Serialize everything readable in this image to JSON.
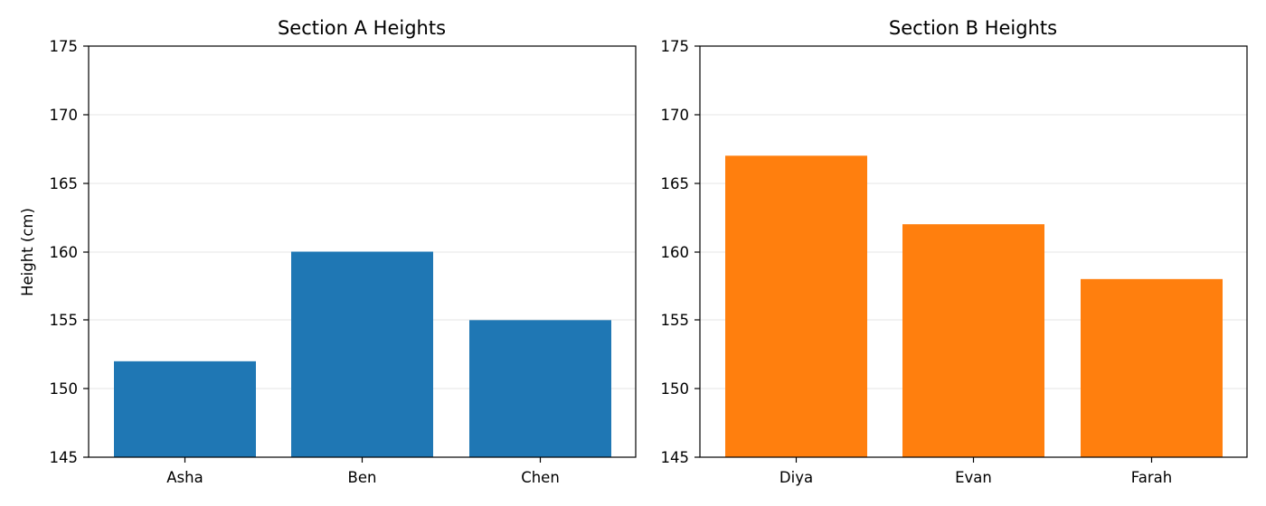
{
  "chart_data": [
    {
      "type": "bar",
      "title": "Section A Heights",
      "xlabel": "",
      "ylabel": "Height (cm)",
      "categories": [
        "Asha",
        "Ben",
        "Chen"
      ],
      "values": [
        152,
        160,
        155
      ],
      "ylim": [
        145,
        175
      ],
      "yticks": [
        "145",
        "150",
        "155",
        "160",
        "165",
        "170",
        "175"
      ],
      "grid": "y-axis",
      "color": "#1f77b4"
    },
    {
      "type": "bar",
      "title": "Section B Heights",
      "xlabel": "",
      "ylabel": "",
      "categories": [
        "Diya",
        "Evan",
        "Farah"
      ],
      "values": [
        167,
        162,
        158
      ],
      "ylim": [
        145,
        175
      ],
      "yticks": [
        "145",
        "150",
        "155",
        "160",
        "165",
        "170",
        "175"
      ],
      "grid": "y-axis",
      "color": "#ff7f0e"
    }
  ]
}
